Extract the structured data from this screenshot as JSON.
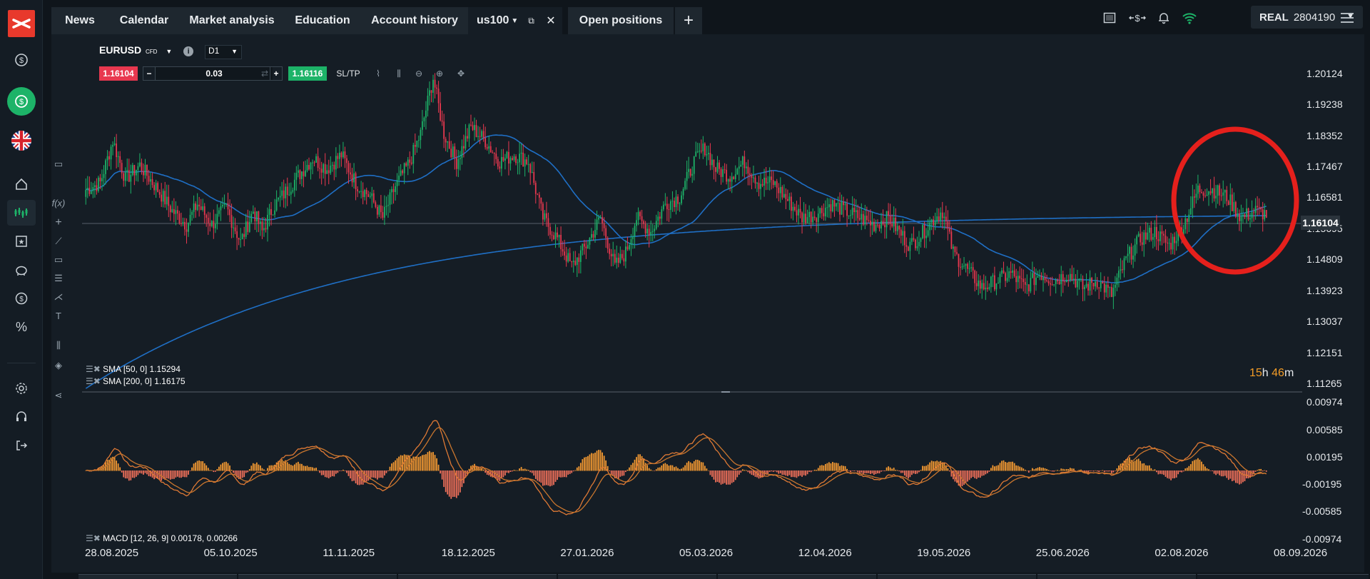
{
  "topbar": {
    "tabs": [
      "News",
      "Calendar",
      "Market analysis",
      "Education",
      "Account history"
    ],
    "instrument_tab": "us100",
    "open_positions": "Open positions",
    "add_label": "+"
  },
  "account": {
    "type": "REAL",
    "number": "2804190"
  },
  "chart": {
    "symbol": "EURUSD",
    "symbol_suffix": "CFD",
    "timeframe": "D1",
    "sell_price": "1.16104",
    "volume": "0.03",
    "buy_price": "1.16116",
    "sltp": "SL/TP",
    "countdown_h": "15",
    "countdown_m": "46",
    "countdown_h_unit": "h",
    "countdown_m_unit": "m",
    "sma50_label": "SMA [50, 0] 1.15294",
    "sma200_label": "SMA [200, 0] 1.16175",
    "macd_label": "MACD [12, 26, 9] 0.00178, 0.00266",
    "current_price_tag": "1.16104"
  },
  "colors": {
    "bull": "#1db368",
    "bear": "#e8384f",
    "sma": "#1f6fc5",
    "macd_pos": "#f59a32",
    "macd_neg": "#f0705a",
    "highlight": "#e5201c"
  },
  "chart_data": {
    "type": "candlestick",
    "symbol": "EURUSD",
    "timeframe": "D1",
    "price_axis": [
      "1.20124",
      "1.19238",
      "1.18352",
      "1.17467",
      "1.16581",
      "1.15695",
      "1.14809",
      "1.13923",
      "1.13037",
      "1.12151",
      "1.11265"
    ],
    "ylim": [
      1.1104,
      1.2063
    ],
    "macd_axis": [
      "0.00974",
      "0.00585",
      "0.00195",
      "-0.00195",
      "-0.00585",
      "-0.00974"
    ],
    "macd_ylim": [
      -0.0105,
      0.0105
    ],
    "x_labels": [
      "28.08.2025",
      "05.10.2025",
      "11.11.2025",
      "18.12.2025",
      "27.01.2026",
      "05.03.2026",
      "12.04.2026",
      "19.05.2026",
      "25.06.2026",
      "02.08.2026",
      "08.09.2026"
    ],
    "close_anchors": [
      [
        0,
        1.168
      ],
      [
        8,
        1.17
      ],
      [
        15,
        1.182
      ],
      [
        22,
        1.171
      ],
      [
        30,
        1.175
      ],
      [
        40,
        1.168
      ],
      [
        48,
        1.162
      ],
      [
        56,
        1.158
      ],
      [
        62,
        1.164
      ],
      [
        70,
        1.158
      ],
      [
        78,
        1.163
      ],
      [
        86,
        1.153
      ],
      [
        93,
        1.162
      ],
      [
        98,
        1.156
      ],
      [
        104,
        1.163
      ],
      [
        112,
        1.168
      ],
      [
        118,
        1.172
      ],
      [
        126,
        1.177
      ],
      [
        134,
        1.174
      ],
      [
        142,
        1.178
      ],
      [
        150,
        1.17
      ],
      [
        158,
        1.166
      ],
      [
        165,
        1.16
      ],
      [
        172,
        1.169
      ],
      [
        180,
        1.176
      ],
      [
        186,
        1.184
      ],
      [
        193,
        1.2
      ],
      [
        199,
        1.184
      ],
      [
        206,
        1.176
      ],
      [
        214,
        1.186
      ],
      [
        222,
        1.182
      ],
      [
        230,
        1.176
      ],
      [
        238,
        1.178
      ],
      [
        246,
        1.176
      ],
      [
        254,
        1.16
      ],
      [
        262,
        1.154
      ],
      [
        270,
        1.146
      ],
      [
        278,
        1.152
      ],
      [
        286,
        1.16
      ],
      [
        294,
        1.146
      ],
      [
        300,
        1.15
      ],
      [
        306,
        1.16
      ],
      [
        314,
        1.156
      ],
      [
        322,
        1.164
      ],
      [
        330,
        1.166
      ],
      [
        338,
        1.176
      ],
      [
        344,
        1.18
      ],
      [
        350,
        1.174
      ],
      [
        358,
        1.172
      ],
      [
        366,
        1.176
      ],
      [
        374,
        1.17
      ],
      [
        382,
        1.17
      ],
      [
        390,
        1.165
      ],
      [
        398,
        1.16
      ],
      [
        406,
        1.161
      ],
      [
        414,
        1.164
      ],
      [
        422,
        1.162
      ],
      [
        430,
        1.16
      ],
      [
        438,
        1.158
      ],
      [
        446,
        1.16
      ],
      [
        452,
        1.156
      ],
      [
        458,
        1.152
      ],
      [
        464,
        1.155
      ],
      [
        470,
        1.159
      ],
      [
        476,
        1.162
      ],
      [
        482,
        1.15
      ],
      [
        490,
        1.145
      ],
      [
        498,
        1.14
      ],
      [
        506,
        1.142
      ],
      [
        514,
        1.144
      ],
      [
        522,
        1.14
      ],
      [
        530,
        1.144
      ],
      [
        538,
        1.142
      ],
      [
        546,
        1.144
      ],
      [
        554,
        1.14
      ],
      [
        562,
        1.142
      ],
      [
        570,
        1.138
      ],
      [
        578,
        1.148
      ],
      [
        586,
        1.154
      ],
      [
        594,
        1.156
      ],
      [
        602,
        1.152
      ],
      [
        610,
        1.158
      ],
      [
        618,
        1.168
      ],
      [
        626,
        1.168
      ],
      [
        634,
        1.166
      ],
      [
        642,
        1.16
      ],
      [
        650,
        1.162
      ],
      [
        656,
        1.161
      ]
    ]
  }
}
